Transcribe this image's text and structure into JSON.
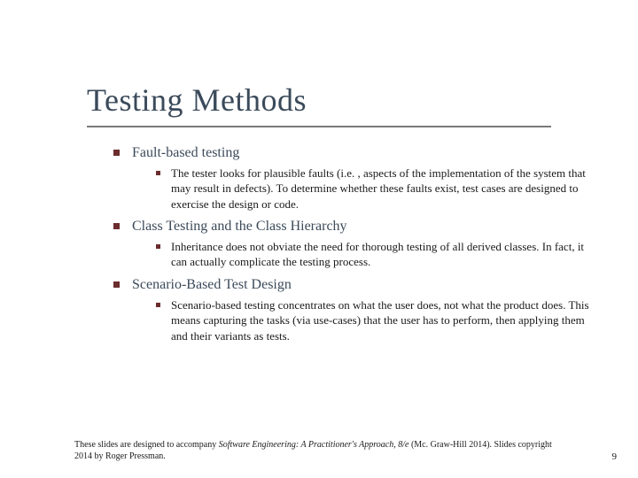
{
  "slide": {
    "title": "Testing Methods",
    "title_color": "#3b4a5a",
    "title_fontsize": 36,
    "underline_color": "#7a7a7a",
    "bullet_color": "#6b2d2d",
    "background_color": "#ffffff",
    "body_font": "Georgia, serif",
    "sections": [
      {
        "heading": "Fault-based testing",
        "heading_fontsize": 16,
        "body": " The tester looks for plausible faults (i.e. , aspects of the implementation of the system that may result in defects). To determine whether these faults exist, test cases are designed to exercise the design or code.",
        "body_fontsize": 13
      },
      {
        "heading": "Class Testing and the Class Hierarchy",
        "heading_fontsize": 16,
        "body": "Inheritance does not obviate the need for thorough testing of all derived classes. In fact, it can actually complicate the testing process.",
        "body_fontsize": 13
      },
      {
        "heading": "Scenario-Based Test Design",
        "heading_fontsize": 16,
        "body": "Scenario-based testing concentrates on what the user does, not what the product does. This means capturing the tasks (via use-cases) that the user has to perform, then applying them and their variants as tests.",
        "body_fontsize": 13
      }
    ],
    "footer": {
      "line1_pre": "These slides are designed to accompany ",
      "line1_italic": "Software Engineering: A Practitioner's Approach, 8/e",
      "line2": " (Mc. Graw-Hill 2014). Slides copyright 2014 by Roger Pressman.",
      "fontsize": 10
    },
    "page_number": "9"
  }
}
